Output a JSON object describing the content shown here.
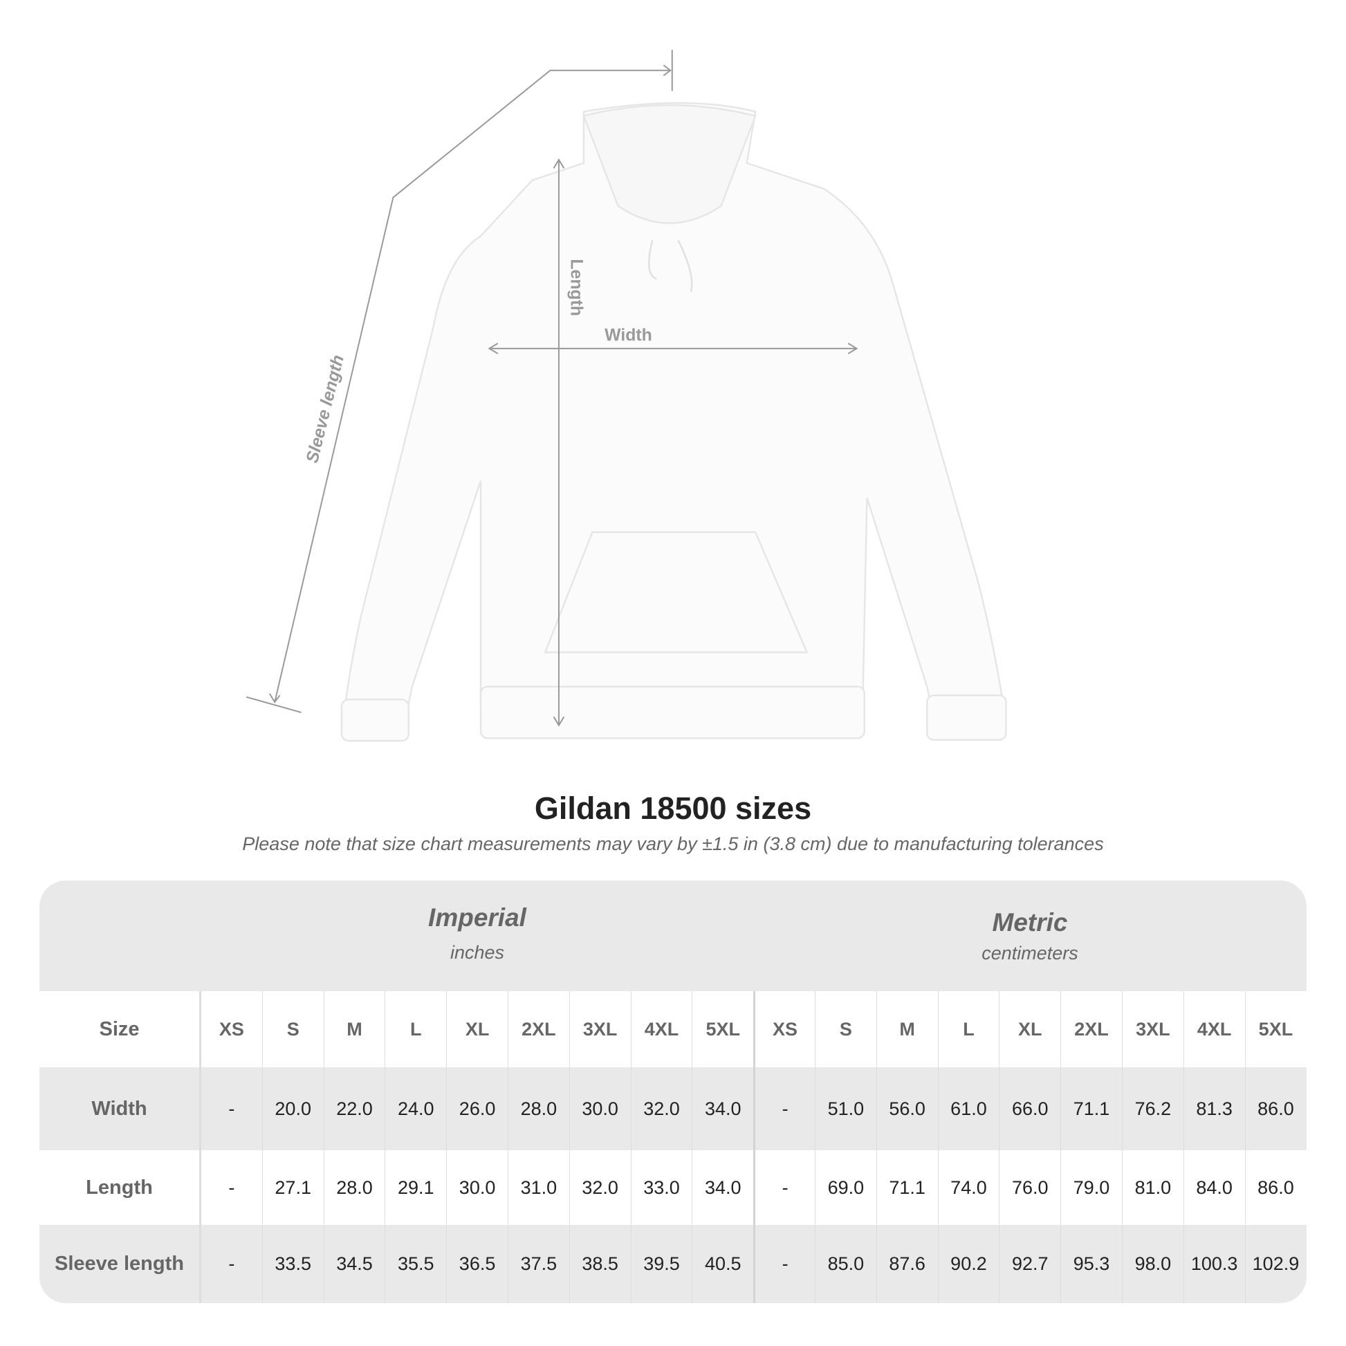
{
  "illustration": {
    "labels": {
      "sleeve": "Sleeve length",
      "length": "Length",
      "width": "Width"
    }
  },
  "title": "Gildan 18500 sizes",
  "subtitle": "Please note that size chart measurements may vary by ±1.5 in (3.8 cm) due to manufacturing tolerances",
  "table": {
    "imperial": {
      "name": "Imperial",
      "unit": "inches"
    },
    "metric": {
      "name": "Metric",
      "unit": "centimeters"
    },
    "rows": [
      {
        "label": "Size",
        "imperial": [
          "XS",
          "S",
          "M",
          "L",
          "XL",
          "2XL",
          "3XL",
          "4XL",
          "5XL"
        ],
        "metric": [
          "XS",
          "S",
          "M",
          "L",
          "XL",
          "2XL",
          "3XL",
          "4XL",
          "5XL"
        ]
      },
      {
        "label": "Width",
        "imperial": [
          "-",
          "20.0",
          "22.0",
          "24.0",
          "26.0",
          "28.0",
          "30.0",
          "32.0",
          "34.0"
        ],
        "metric": [
          "-",
          "51.0",
          "56.0",
          "61.0",
          "66.0",
          "71.1",
          "76.2",
          "81.3",
          "86.0"
        ]
      },
      {
        "label": "Length",
        "imperial": [
          "-",
          "27.1",
          "28.0",
          "29.1",
          "30.0",
          "31.0",
          "32.0",
          "33.0",
          "34.0"
        ],
        "metric": [
          "-",
          "69.0",
          "71.1",
          "74.0",
          "76.0",
          "79.0",
          "81.0",
          "84.0",
          "86.0"
        ]
      },
      {
        "label": "Sleeve length",
        "imperial": [
          "-",
          "33.5",
          "34.5",
          "35.5",
          "36.5",
          "37.5",
          "38.5",
          "39.5",
          "40.5"
        ],
        "metric": [
          "-",
          "85.0",
          "87.6",
          "90.2",
          "92.7",
          "95.3",
          "98.0",
          "100.3",
          "102.9"
        ]
      }
    ]
  }
}
